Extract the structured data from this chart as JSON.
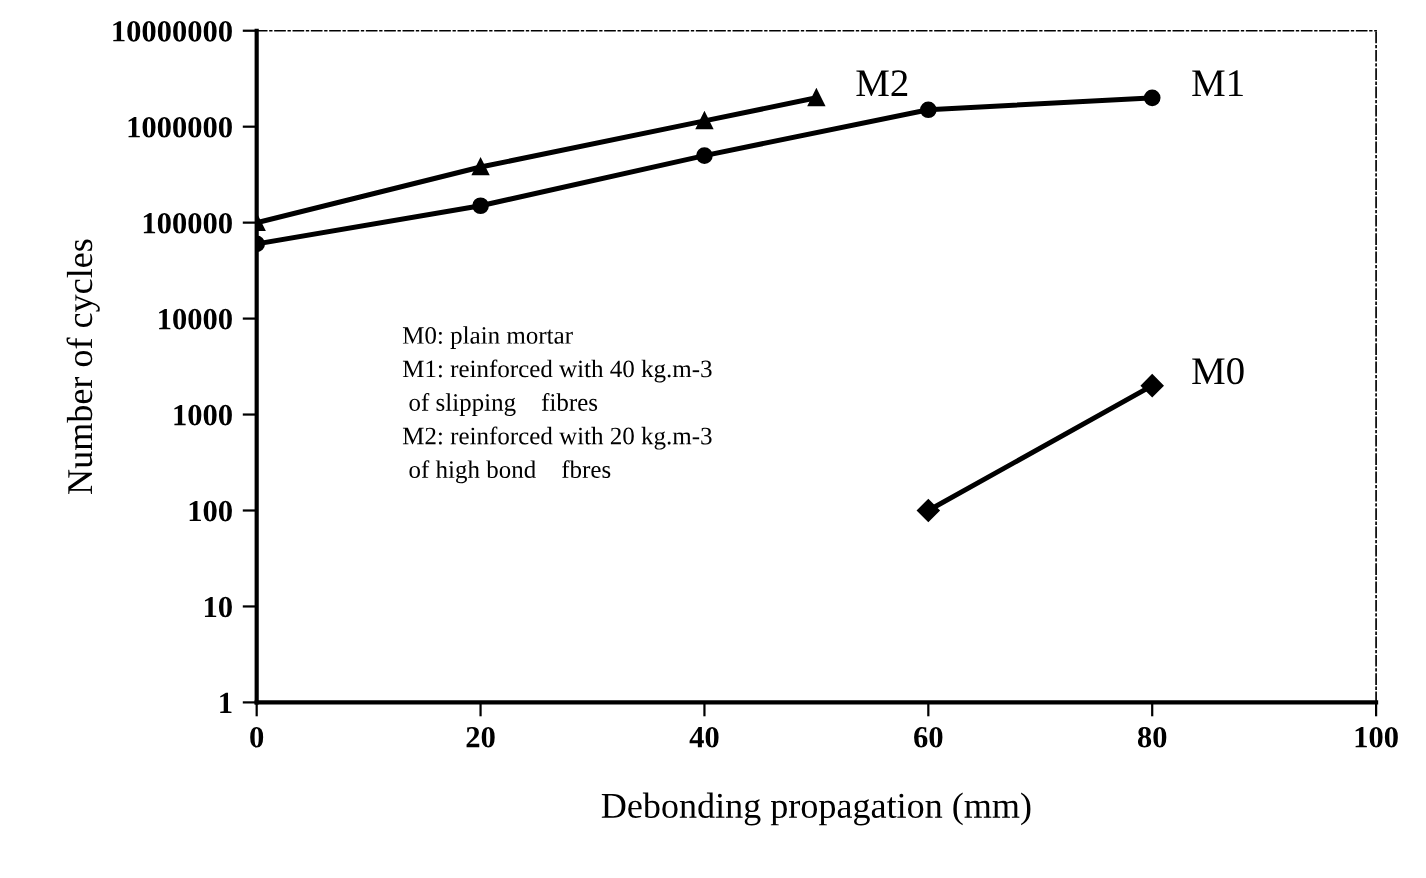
{
  "chart_data": {
    "type": "line",
    "xlabel": "Debonding propagation (mm)",
    "ylabel": "Number of cycles",
    "log": "y",
    "xlim": [
      0,
      100
    ],
    "xticks": [
      0,
      20,
      40,
      60,
      80,
      100
    ],
    "ylim": [
      1,
      10000000
    ],
    "yticks": [
      1,
      10,
      100,
      1000,
      10000,
      100000,
      1000000,
      10000000
    ],
    "grid": false,
    "legend": false,
    "line_style": "solid",
    "series": [
      {
        "name": "M1",
        "color": "#000000",
        "marker": "circle",
        "x": [
          0,
          20,
          40,
          60,
          80
        ],
        "values": [
          60000,
          150000,
          500000,
          1500000,
          2000000
        ]
      },
      {
        "name": "M2",
        "color": "#000000",
        "marker": "triangle",
        "x": [
          0,
          20,
          40,
          50
        ],
        "values": [
          100000,
          380000,
          1150000,
          2000000
        ]
      },
      {
        "name": "M0",
        "color": "#000000",
        "marker": "diamond",
        "x": [
          60,
          80
        ],
        "values": [
          100,
          2000
        ]
      }
    ],
    "annotations": [
      "M0: plain mortar\nM1: reinforced with 40 kg.m-3\n of slipping    fibres\nM2: reinforced with 20 kg.m-3\n of high bond    fbres"
    ]
  }
}
